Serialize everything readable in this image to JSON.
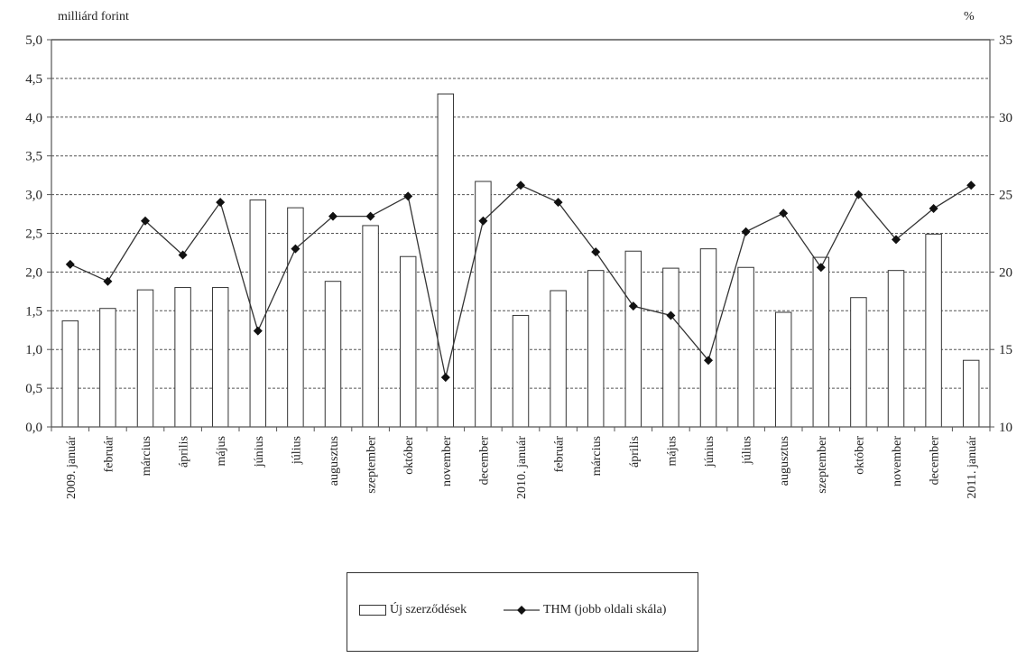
{
  "chart_data": {
    "type": "bar+line",
    "left_unit_label": "milliárd forint",
    "right_unit_label": "%",
    "categories": [
      "2009. január",
      "február",
      "március",
      "április",
      "május",
      "június",
      "július",
      "augusztus",
      "szeptember",
      "október",
      "november",
      "december",
      "2010. január",
      "február",
      "március",
      "április",
      "május",
      "június",
      "július",
      "augusztus",
      "szeptember",
      "október",
      "november",
      "december",
      "2011. január"
    ],
    "series": [
      {
        "name": "Új szerződések",
        "kind": "bar",
        "axis": "left",
        "values": [
          1.37,
          1.53,
          1.77,
          1.8,
          1.8,
          2.93,
          2.83,
          1.88,
          2.6,
          2.2,
          4.3,
          3.17,
          1.44,
          1.76,
          2.02,
          2.27,
          2.05,
          2.3,
          2.06,
          1.48,
          2.19,
          1.67,
          2.02,
          2.49,
          0.86
        ]
      },
      {
        "name": "THM (jobb oldali skála)",
        "kind": "line",
        "axis": "right",
        "values": [
          20.5,
          19.4,
          23.3,
          21.1,
          24.5,
          16.2,
          21.5,
          23.6,
          23.6,
          24.9,
          13.2,
          23.3,
          25.6,
          24.5,
          21.3,
          17.8,
          17.2,
          14.3,
          22.6,
          23.8,
          20.3,
          25.0,
          22.1,
          24.1,
          25.6
        ]
      }
    ],
    "left_axis": {
      "min": 0,
      "max": 5,
      "step": 0.5,
      "tick_labels": [
        "0,0",
        "0,5",
        "1,0",
        "1,5",
        "2,0",
        "2,5",
        "3,0",
        "3,5",
        "4,0",
        "4,5",
        "5,0"
      ]
    },
    "right_axis": {
      "min": 10,
      "max": 35,
      "step": 5,
      "tick_labels": [
        "10",
        "15",
        "20",
        "25",
        "30",
        "35"
      ]
    },
    "grid": "horizontal-dashed",
    "legend_position": "bottom-center",
    "colors": {
      "bar_fill": "#ffffff",
      "bar_stroke": "#333333",
      "line": "#333333",
      "marker": "#111111",
      "grid": "#555555",
      "axis": "#555555"
    }
  }
}
